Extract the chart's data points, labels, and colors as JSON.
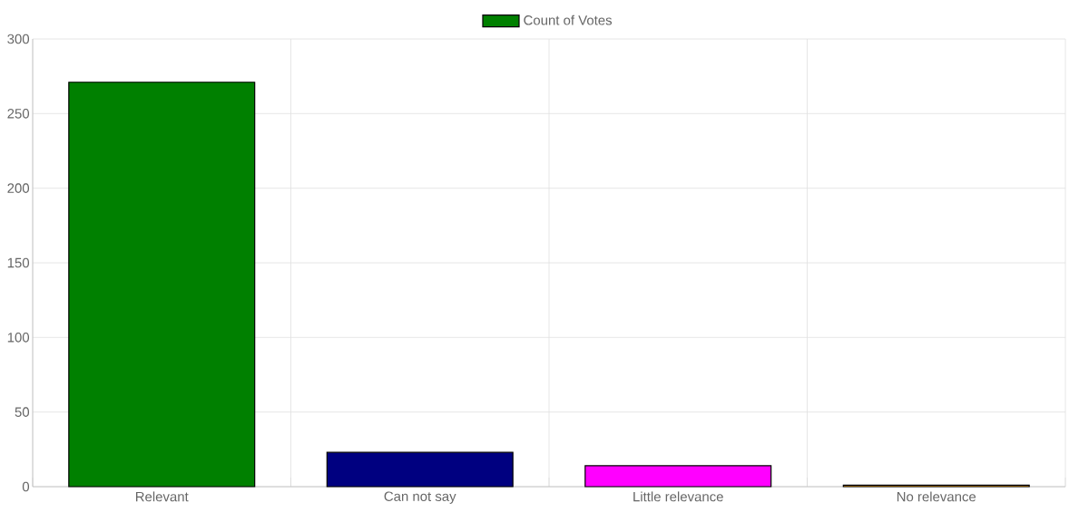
{
  "chart_data": {
    "type": "bar",
    "categories": [
      "Relevant",
      "Can not say",
      "Little relevance",
      "No relevance"
    ],
    "series": [
      {
        "name": "Count of Votes",
        "colors": [
          "#008000",
          "#000080",
          "#ff00ff",
          "#ffa500"
        ],
        "values": [
          271,
          23,
          14,
          1
        ]
      }
    ],
    "ylim": [
      0,
      300
    ],
    "yticks": [
      0,
      50,
      100,
      150,
      200,
      250,
      300
    ],
    "grid": true,
    "legend": "top"
  }
}
